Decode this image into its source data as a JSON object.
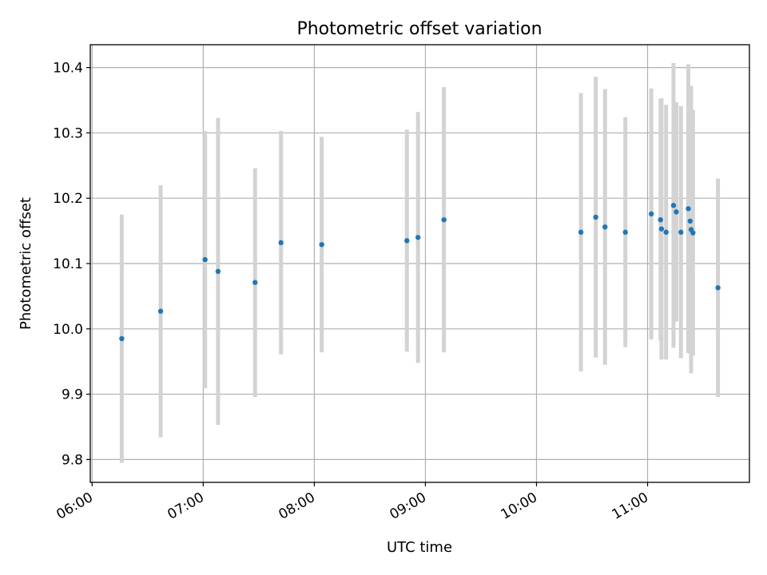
{
  "chart_data": {
    "type": "scatter",
    "title": "Photometric offset variation",
    "xlabel": "UTC time",
    "ylabel": "Photometric offset",
    "xlim": [
      "05:59",
      "11:55"
    ],
    "ylim": [
      9.765,
      10.435
    ],
    "x_ticks": [
      "06:00",
      "07:00",
      "08:00",
      "09:00",
      "10:00",
      "11:00"
    ],
    "y_ticks": [
      9.8,
      9.9,
      10.0,
      10.1,
      10.2,
      10.3,
      10.4
    ],
    "grid": true,
    "colors": {
      "point": "#1f77b4",
      "errorbar": "#d3d3d3",
      "grid": "#b0b0b0"
    },
    "points": [
      {
        "x": "06:16",
        "y": 9.985,
        "err": 0.19
      },
      {
        "x": "06:37",
        "y": 10.027,
        "err": 0.193
      },
      {
        "x": "07:01",
        "y": 10.106,
        "err": 0.197
      },
      {
        "x": "07:08",
        "y": 10.088,
        "err": 0.235
      },
      {
        "x": "07:28",
        "y": 10.071,
        "err": 0.175
      },
      {
        "x": "07:42",
        "y": 10.132,
        "err": 0.171
      },
      {
        "x": "08:04",
        "y": 10.129,
        "err": 0.165
      },
      {
        "x": "08:50",
        "y": 10.135,
        "err": 0.17
      },
      {
        "x": "08:56",
        "y": 10.14,
        "err": 0.192
      },
      {
        "x": "09:10",
        "y": 10.167,
        "err": 0.203
      },
      {
        "x": "10:24",
        "y": 10.148,
        "err": 0.213
      },
      {
        "x": "10:32",
        "y": 10.171,
        "err": 0.215
      },
      {
        "x": "10:37",
        "y": 10.156,
        "err": 0.211
      },
      {
        "x": "10:48",
        "y": 10.148,
        "err": 0.176
      },
      {
        "x": "11:02",
        "y": 10.176,
        "err": 0.192
      },
      {
        "x": "11:07",
        "y": 10.167,
        "err": 0.185
      },
      {
        "x": "11:07.5",
        "y": 10.153,
        "err": 0.2
      },
      {
        "x": "11:10",
        "y": 10.148,
        "err": 0.195
      },
      {
        "x": "11:14",
        "y": 10.189,
        "err": 0.218
      },
      {
        "x": "11:15.5",
        "y": 10.179,
        "err": 0.168
      },
      {
        "x": "11:18",
        "y": 10.148,
        "err": 0.193
      },
      {
        "x": "11:22",
        "y": 10.184,
        "err": 0.221
      },
      {
        "x": "11:23",
        "y": 10.165,
        "err": 0.203
      },
      {
        "x": "11:23.5",
        "y": 10.152,
        "err": 0.22
      },
      {
        "x": "11:24.5",
        "y": 10.147,
        "err": 0.188
      },
      {
        "x": "11:38",
        "y": 10.063,
        "err": 0.167
      }
    ]
  }
}
